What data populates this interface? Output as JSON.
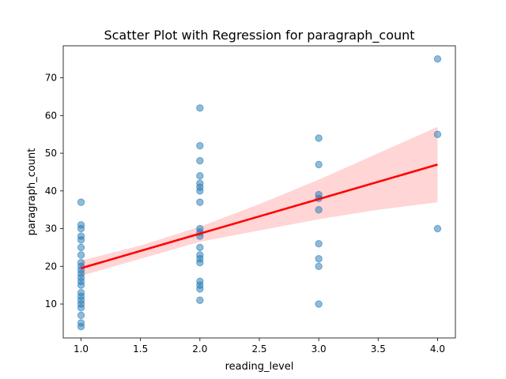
{
  "chart_data": {
    "type": "scatter",
    "title": "Scatter Plot with Regression for paragraph_count",
    "xlabel": "reading_level",
    "ylabel": "paragraph_count",
    "xlim": [
      0.85,
      4.15
    ],
    "ylim": [
      1.0,
      78.5
    ],
    "x_ticks": [
      1.0,
      1.5,
      2.0,
      2.5,
      3.0,
      3.5,
      4.0
    ],
    "x_tick_labels": [
      "1.0",
      "1.5",
      "2.0",
      "2.5",
      "3.0",
      "3.5",
      "4.0"
    ],
    "y_ticks": [
      10,
      20,
      30,
      40,
      50,
      60,
      70
    ],
    "y_tick_labels": [
      "10",
      "20",
      "30",
      "40",
      "50",
      "60",
      "70"
    ],
    "grid": false,
    "colors": {
      "points": "#1f77b4",
      "regression_line": "#ff0000",
      "confidence_band": "#ffb3b3"
    },
    "points": [
      {
        "x": 1,
        "y": 37
      },
      {
        "x": 1,
        "y": 31
      },
      {
        "x": 1,
        "y": 30
      },
      {
        "x": 1,
        "y": 28
      },
      {
        "x": 1,
        "y": 27
      },
      {
        "x": 1,
        "y": 25
      },
      {
        "x": 1,
        "y": 23
      },
      {
        "x": 1,
        "y": 21
      },
      {
        "x": 1,
        "y": 20
      },
      {
        "x": 1,
        "y": 19
      },
      {
        "x": 1,
        "y": 18
      },
      {
        "x": 1,
        "y": 17
      },
      {
        "x": 1,
        "y": 16
      },
      {
        "x": 1,
        "y": 15
      },
      {
        "x": 1,
        "y": 13
      },
      {
        "x": 1,
        "y": 12
      },
      {
        "x": 1,
        "y": 11
      },
      {
        "x": 1,
        "y": 10
      },
      {
        "x": 1,
        "y": 9
      },
      {
        "x": 1,
        "y": 7
      },
      {
        "x": 1,
        "y": 5
      },
      {
        "x": 1,
        "y": 4
      },
      {
        "x": 2,
        "y": 62
      },
      {
        "x": 2,
        "y": 52
      },
      {
        "x": 2,
        "y": 48
      },
      {
        "x": 2,
        "y": 44
      },
      {
        "x": 2,
        "y": 42
      },
      {
        "x": 2,
        "y": 41
      },
      {
        "x": 2,
        "y": 40
      },
      {
        "x": 2,
        "y": 37
      },
      {
        "x": 2,
        "y": 30
      },
      {
        "x": 2,
        "y": 29
      },
      {
        "x": 2,
        "y": 28
      },
      {
        "x": 2,
        "y": 25
      },
      {
        "x": 2,
        "y": 23
      },
      {
        "x": 2,
        "y": 22
      },
      {
        "x": 2,
        "y": 21
      },
      {
        "x": 2,
        "y": 16
      },
      {
        "x": 2,
        "y": 15
      },
      {
        "x": 2,
        "y": 14
      },
      {
        "x": 2,
        "y": 11
      },
      {
        "x": 3,
        "y": 54
      },
      {
        "x": 3,
        "y": 47
      },
      {
        "x": 3,
        "y": 39
      },
      {
        "x": 3,
        "y": 38
      },
      {
        "x": 3,
        "y": 35
      },
      {
        "x": 3,
        "y": 26
      },
      {
        "x": 3,
        "y": 22
      },
      {
        "x": 3,
        "y": 20
      },
      {
        "x": 3,
        "y": 10
      },
      {
        "x": 4,
        "y": 75
      },
      {
        "x": 4,
        "y": 55
      },
      {
        "x": 4,
        "y": 30
      }
    ],
    "regression": {
      "x": [
        1.0,
        4.0
      ],
      "y": [
        19.5,
        47.0
      ]
    },
    "confidence_band": [
      {
        "x": 1.0,
        "lo": 17.5,
        "hi": 21.5
      },
      {
        "x": 1.5,
        "lo": 22.0,
        "hi": 25.5
      },
      {
        "x": 2.0,
        "lo": 26.5,
        "hi": 30.5
      },
      {
        "x": 2.5,
        "lo": 29.5,
        "hi": 36.5
      },
      {
        "x": 3.0,
        "lo": 32.5,
        "hi": 43.0
      },
      {
        "x": 3.5,
        "lo": 35.0,
        "hi": 50.0
      },
      {
        "x": 4.0,
        "lo": 37.0,
        "hi": 57.0
      }
    ]
  }
}
